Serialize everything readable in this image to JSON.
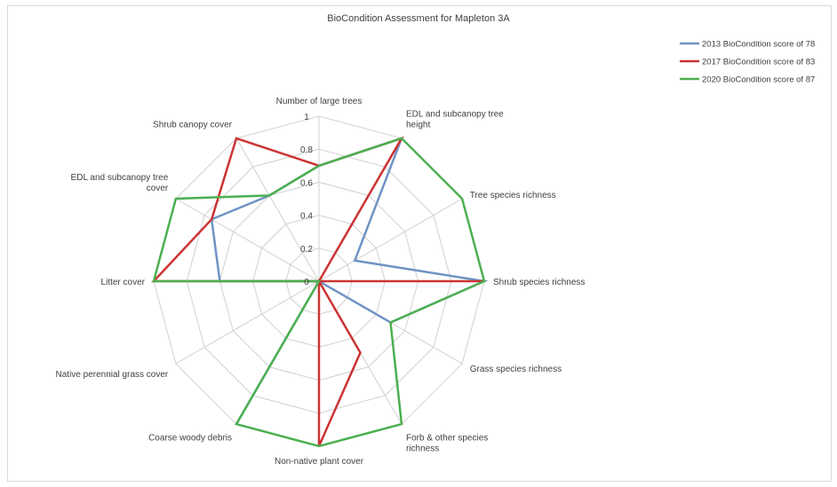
{
  "chart_data": {
    "type": "radar",
    "title": "BioCondition Assessment for Mapleton 3A",
    "categories": [
      [
        "Number of large trees"
      ],
      [
        "EDL and subcanopy tree",
        "height"
      ],
      [
        "Tree species richness"
      ],
      [
        "Shrub species richness"
      ],
      [
        "Grass species richness"
      ],
      [
        "Forb & other species",
        "richness"
      ],
      [
        "Non-native plant cover"
      ],
      [
        "Coarse woody debris"
      ],
      [
        "Native perennial grass cover"
      ],
      [
        "Litter cover"
      ],
      [
        "EDL and subcanopy tree",
        "cover"
      ],
      [
        "Shrub canopy cover"
      ]
    ],
    "rlim": [
      0,
      1
    ],
    "ticks": [
      "0",
      "0.2",
      "0.4",
      "0.6",
      "0.8",
      "1"
    ],
    "series": [
      {
        "name": "2013 BioCondition score of 78",
        "color": "#6f93c4",
        "values": [
          0.7,
          1.0,
          0.25,
          1.0,
          0.5,
          0.0,
          0.0,
          1.0,
          0.0,
          0.6,
          0.75,
          0.6
        ]
      },
      {
        "name": "2017 BioCondition score of 83",
        "color": "#cc3333",
        "values": [
          0.7,
          1.0,
          0.0,
          1.0,
          0.0,
          0.5,
          1.0,
          0.0,
          0.0,
          1.0,
          0.75,
          1.0
        ]
      },
      {
        "name": "2020 BioCondition score of 87",
        "color": "#4caf50",
        "values": [
          0.7,
          1.0,
          1.0,
          1.0,
          0.5,
          1.0,
          1.0,
          1.0,
          0.0,
          1.0,
          1.0,
          0.6
        ]
      }
    ],
    "grid": true,
    "legend": "right"
  }
}
